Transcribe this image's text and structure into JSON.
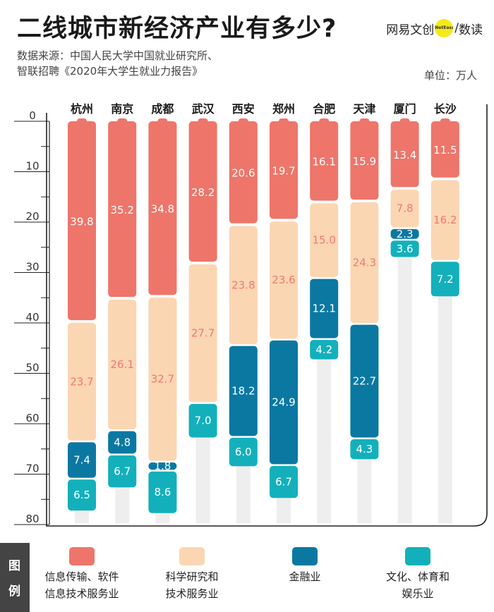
{
  "title": "二线城市新经济产业有多少?",
  "brand": {
    "left": "网易文创",
    "badge": "NetEase",
    "right": "数读"
  },
  "source": {
    "line1": "数据来源：中国人民大学中国就业研究所、",
    "line2": "智联招聘《2020年大学生就业力报告》"
  },
  "unit": "单位：万人",
  "legend_side": {
    "top_char": "图",
    "bottom_char": "例"
  },
  "chart_data": {
    "type": "bar",
    "stacked": true,
    "orientation": "vertical-inverted",
    "title": "二线城市新经济产业有多少?",
    "ylabel": "单位：万人",
    "ylim": [
      0,
      80
    ],
    "yticks": [
      0,
      10,
      20,
      30,
      40,
      50,
      60,
      70,
      80
    ],
    "categories": [
      "杭州",
      "南京",
      "成都",
      "武汉",
      "西安",
      "郑州",
      "合肥",
      "天津",
      "厦门",
      "长沙"
    ],
    "series": [
      {
        "name": "信息传输、软件信息技术服务业",
        "label_lines": [
          "信息传输、软件",
          "信息技术服务业"
        ],
        "color": "#ee756a",
        "text_color": "#ffffff",
        "values": [
          39.8,
          35.2,
          34.8,
          28.2,
          20.6,
          19.7,
          16.1,
          15.9,
          13.4,
          11.5
        ]
      },
      {
        "name": "科学研究和技术服务业",
        "label_lines": [
          "科学研究和",
          "技术服务业"
        ],
        "color": "#fbd6b3",
        "text_color": "#ef7a70",
        "values": [
          23.7,
          26.1,
          32.7,
          27.7,
          23.8,
          23.6,
          15.0,
          24.3,
          7.8,
          16.2
        ]
      },
      {
        "name": "金融业",
        "label_lines": [
          "金融业"
        ],
        "color": "#0b78a2",
        "text_color": "#ffffff",
        "values": [
          7.4,
          4.8,
          1.8,
          null,
          18.2,
          24.9,
          12.1,
          22.7,
          2.3,
          null
        ]
      },
      {
        "name": "文化、体育和娱乐业",
        "label_lines": [
          "文化、体育和",
          "娱乐业"
        ],
        "color": "#13b0bb",
        "text_color": "#ffffff",
        "values": [
          6.5,
          6.7,
          8.6,
          7.0,
          6.0,
          6.7,
          4.2,
          4.3,
          3.6,
          7.2
        ]
      }
    ]
  }
}
